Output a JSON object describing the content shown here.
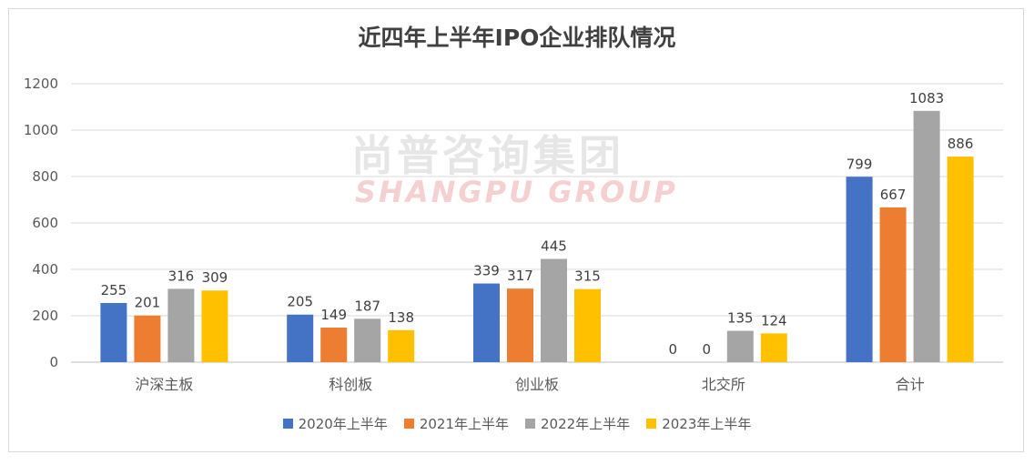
{
  "chart_data": {
    "type": "bar",
    "title": "近四年上半年IPO企业排队情况",
    "categories": [
      "沪深主板",
      "科创板",
      "创业板",
      "北交所",
      "合计"
    ],
    "series": [
      {
        "name": "2020年上半年",
        "color": "#4472c4",
        "values": [
          255,
          205,
          339,
          0,
          799
        ]
      },
      {
        "name": "2021年上半年",
        "color": "#ed7d31",
        "values": [
          201,
          149,
          317,
          0,
          667
        ]
      },
      {
        "name": "2022年上半年",
        "color": "#a5a5a5",
        "values": [
          316,
          187,
          445,
          135,
          1083
        ]
      },
      {
        "name": "2023年上半年",
        "color": "#ffc000",
        "values": [
          309,
          138,
          315,
          124,
          886
        ]
      }
    ],
    "ylim": [
      0,
      1200
    ],
    "yticks": [
      0,
      200,
      400,
      600,
      800,
      1000,
      1200
    ],
    "grid": true,
    "legend": "bottom"
  },
  "watermark": {
    "cn": "尚普咨询集团",
    "en": "SHANGPU GROUP"
  }
}
